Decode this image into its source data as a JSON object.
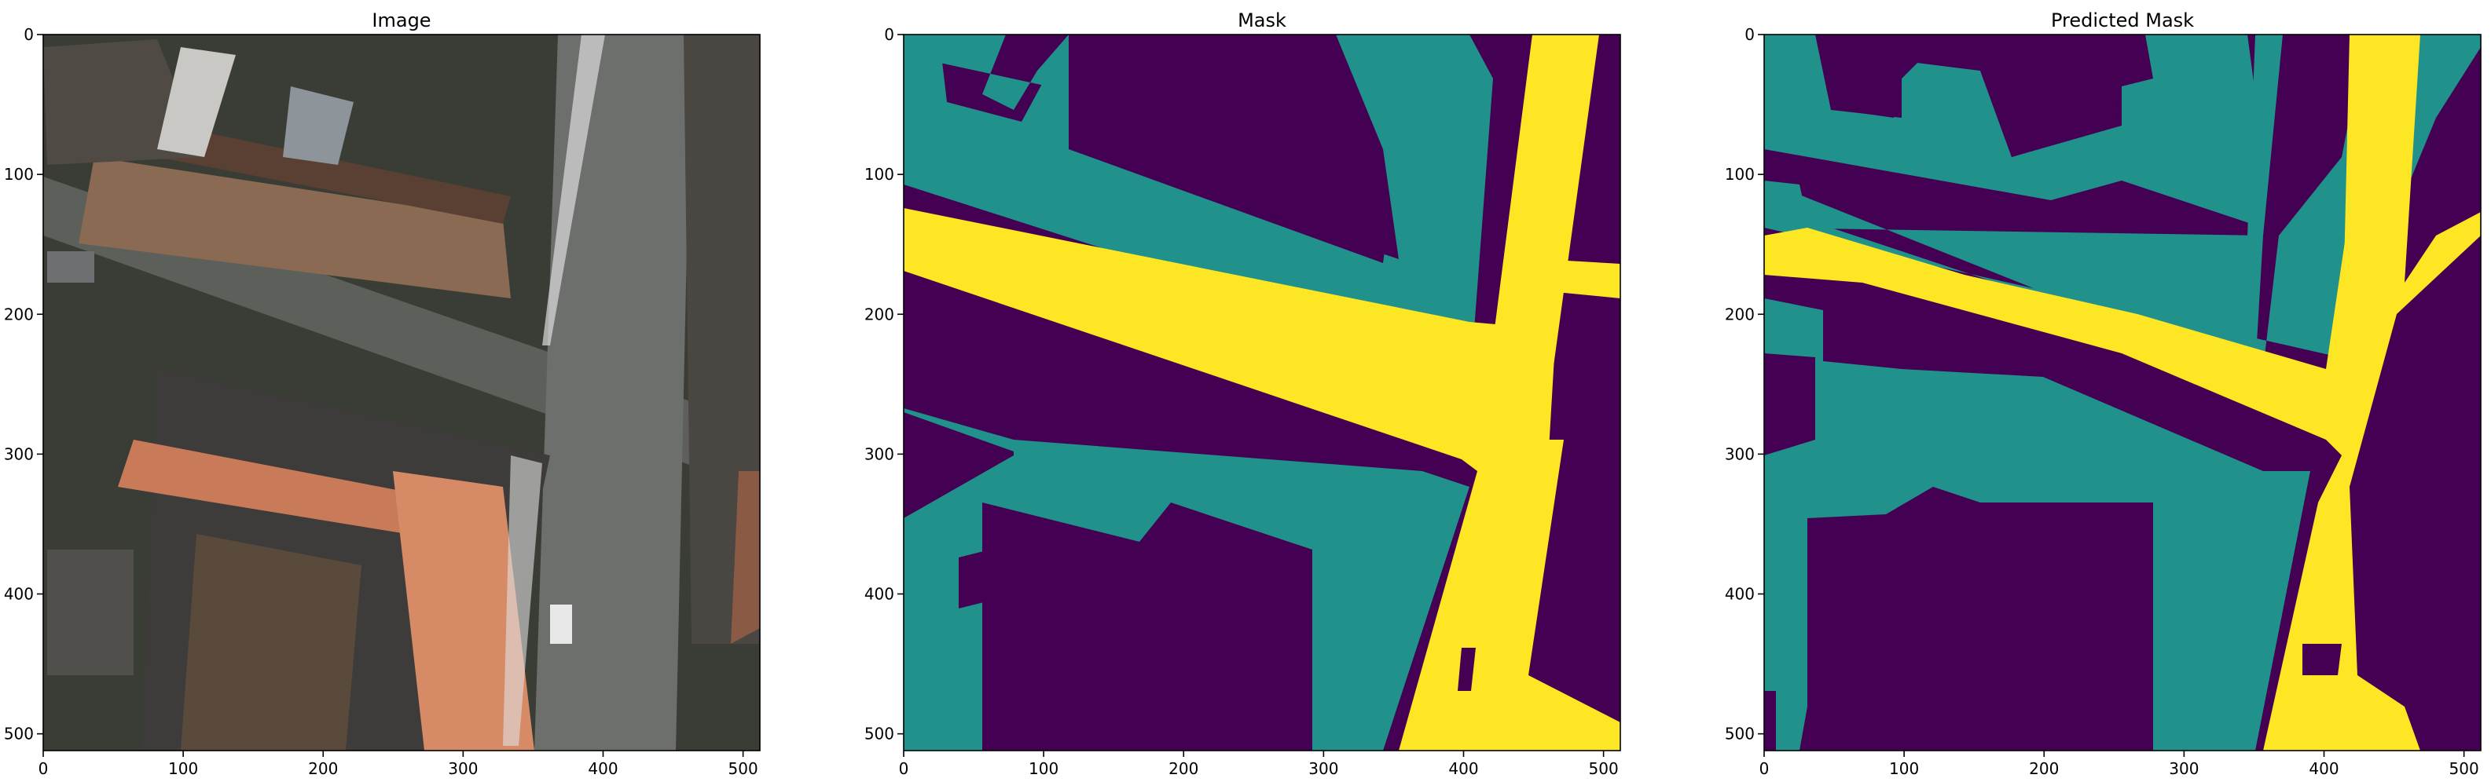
{
  "chart_data": [
    {
      "type": "heatmap",
      "title": "Image",
      "content": "aerial photograph",
      "xlim": [
        0,
        512
      ],
      "ylim": [
        512,
        0
      ],
      "x_ticks": [
        0,
        100,
        200,
        300,
        400,
        500
      ],
      "y_ticks": [
        0,
        100,
        200,
        300,
        400,
        500
      ]
    },
    {
      "type": "heatmap",
      "title": "Mask",
      "xlim": [
        0,
        512
      ],
      "ylim": [
        512,
        0
      ],
      "x_ticks": [
        0,
        100,
        200,
        300,
        400,
        500
      ],
      "y_ticks": [
        0,
        100,
        200,
        300,
        400,
        500
      ],
      "colormap": "viridis",
      "class_colors": [
        "#440154",
        "#21918c",
        "#fde725"
      ]
    },
    {
      "type": "heatmap",
      "title": "Predicted Mask",
      "xlim": [
        0,
        512
      ],
      "ylim": [
        512,
        0
      ],
      "x_ticks": [
        0,
        100,
        200,
        300,
        400,
        500
      ],
      "y_ticks": [
        0,
        100,
        200,
        300,
        400,
        500
      ],
      "colormap": "viridis",
      "class_colors": [
        "#440154",
        "#21918c",
        "#fde725"
      ]
    }
  ]
}
